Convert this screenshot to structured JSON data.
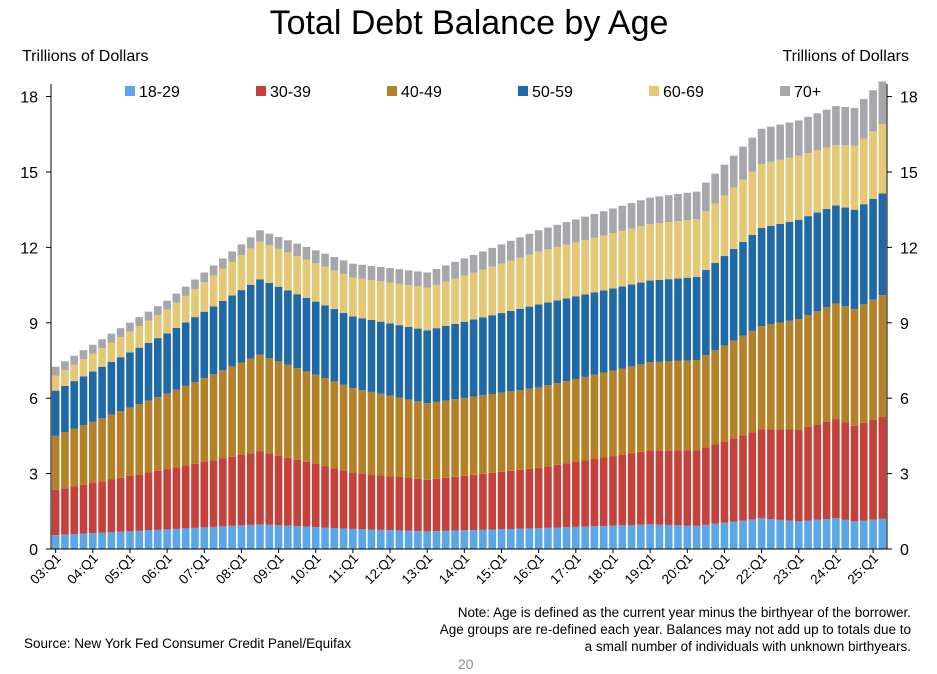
{
  "page_number": "20",
  "source_text": "Source: New York Fed Consumer Credit Panel/Equifax",
  "note_text": "Note: Age is defined as the current year minus the birthyear of the borrower. Age groups are re-defined each year. Balances may not add up to totals due to a small number of individuals with unknown birthyears.",
  "chart_data": {
    "type": "bar",
    "stacked": true,
    "title": "Total Debt Balance by Age",
    "ylabel_left": "Trillions of Dollars",
    "ylabel_right": "Trillions of Dollars",
    "ylim": [
      0,
      18.5
    ],
    "yticks": [
      0,
      3,
      6,
      9,
      12,
      15,
      18
    ],
    "xtick_labels": [
      "03:Q1",
      "04:Q1",
      "05:Q1",
      "06:Q1",
      "07:Q1",
      "08:Q1",
      "09:Q1",
      "10:Q1",
      "11:Q1",
      "12:Q1",
      "13:Q1",
      "14:Q1",
      "15:Q1",
      "16:Q1",
      "17:Q1",
      "18:Q1",
      "19:Q1",
      "20:Q1",
      "21:Q1",
      "22:Q1",
      "23:Q1",
      "24:Q1",
      "25:Q1"
    ],
    "first_period": "2003 Q1",
    "last_period": "2025 Q2",
    "legend_position": "top",
    "grid": false,
    "series": [
      {
        "name": "18-29",
        "color": "#5aa6e6",
        "anchors": [
          [
            2003,
            0.55
          ],
          [
            2006,
            0.78
          ],
          [
            2008.5,
            0.98
          ],
          [
            2011,
            0.8
          ],
          [
            2013,
            0.7
          ],
          [
            2016,
            0.83
          ],
          [
            2019,
            0.98
          ],
          [
            2020.25,
            0.92
          ],
          [
            2022,
            1.22
          ],
          [
            2023,
            1.1
          ],
          [
            2024,
            1.22
          ],
          [
            2024.5,
            1.1
          ],
          [
            2025.25,
            1.2
          ]
        ]
      },
      {
        "name": "30-39",
        "color": "#c5413c",
        "anchors": [
          [
            2003,
            1.8
          ],
          [
            2006,
            2.4
          ],
          [
            2008.5,
            2.9
          ],
          [
            2011,
            2.25
          ],
          [
            2013,
            2.05
          ],
          [
            2016,
            2.4
          ],
          [
            2019,
            2.95
          ],
          [
            2020.25,
            3.0
          ],
          [
            2022,
            3.55
          ],
          [
            2023,
            3.65
          ],
          [
            2024,
            3.95
          ],
          [
            2024.5,
            3.8
          ],
          [
            2025.25,
            4.05
          ]
        ]
      },
      {
        "name": "40-49",
        "color": "#b58128",
        "anchors": [
          [
            2003,
            2.15
          ],
          [
            2006,
            3.0
          ],
          [
            2008.5,
            3.85
          ],
          [
            2011,
            3.35
          ],
          [
            2013,
            3.05
          ],
          [
            2016,
            3.2
          ],
          [
            2019,
            3.5
          ],
          [
            2020.25,
            3.6
          ],
          [
            2022,
            4.1
          ],
          [
            2023,
            4.4
          ],
          [
            2024,
            4.6
          ],
          [
            2024.5,
            4.65
          ],
          [
            2025.25,
            4.85
          ]
        ]
      },
      {
        "name": "50-59",
        "color": "#1f6aa6",
        "anchors": [
          [
            2003,
            1.8
          ],
          [
            2006,
            2.4
          ],
          [
            2008.5,
            3.0
          ],
          [
            2011,
            2.85
          ],
          [
            2013,
            2.9
          ],
          [
            2016,
            3.3
          ],
          [
            2019,
            3.25
          ],
          [
            2020.25,
            3.3
          ],
          [
            2022,
            3.9
          ],
          [
            2023,
            3.95
          ],
          [
            2024,
            3.9
          ],
          [
            2024.5,
            3.95
          ],
          [
            2025.25,
            4.05
          ]
        ]
      },
      {
        "name": "60-69",
        "color": "#e5c875",
        "anchors": [
          [
            2003,
            0.6
          ],
          [
            2006,
            0.95
          ],
          [
            2008.5,
            1.5
          ],
          [
            2011,
            1.55
          ],
          [
            2013,
            1.7
          ],
          [
            2016,
            2.1
          ],
          [
            2019,
            2.25
          ],
          [
            2020.25,
            2.3
          ],
          [
            2022,
            2.55
          ],
          [
            2023,
            2.55
          ],
          [
            2024,
            2.4
          ],
          [
            2024.5,
            2.55
          ],
          [
            2025.25,
            2.75
          ]
        ]
      },
      {
        "name": "70+",
        "color": "#a6a6ab",
        "anchors": [
          [
            2003,
            0.35
          ],
          [
            2006,
            0.35
          ],
          [
            2008.5,
            0.45
          ],
          [
            2011,
            0.55
          ],
          [
            2013,
            0.6
          ],
          [
            2016,
            0.85
          ],
          [
            2019,
            1.05
          ],
          [
            2020.25,
            1.1
          ],
          [
            2022,
            1.4
          ],
          [
            2023,
            1.4
          ],
          [
            2024,
            1.55
          ],
          [
            2024.5,
            1.5
          ],
          [
            2025.25,
            1.7
          ]
        ]
      }
    ]
  }
}
